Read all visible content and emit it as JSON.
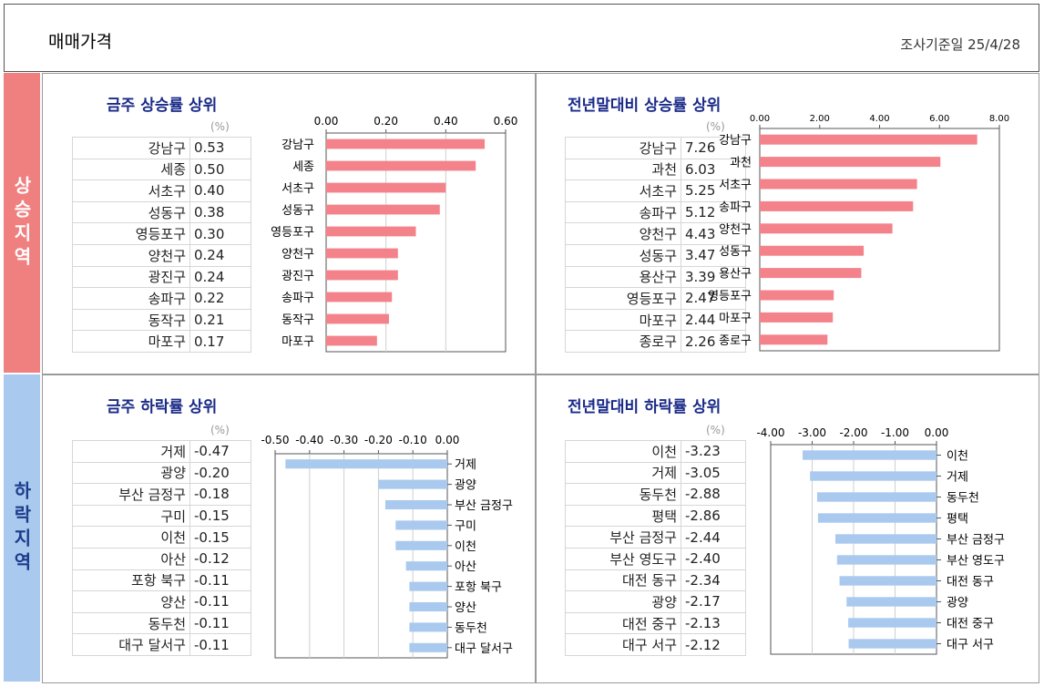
{
  "page": {
    "title": "매매가격",
    "survey_date": "조사기준일 25/4/28"
  },
  "regions": {
    "rising": "상승지역",
    "falling": "하락지역"
  },
  "panels": [
    {
      "title": "금주 상승률 상위",
      "unit": "(%)",
      "rows": [
        {
          "name": "강남구",
          "value": "0.53"
        },
        {
          "name": "세종",
          "value": "0.50"
        },
        {
          "name": "서초구",
          "value": "0.40"
        },
        {
          "name": "성동구",
          "value": "0.38"
        },
        {
          "name": "영등포구",
          "value": "0.30"
        },
        {
          "name": "양천구",
          "value": "0.24"
        },
        {
          "name": "광진구",
          "value": "0.24"
        },
        {
          "name": "송파구",
          "value": "0.22"
        },
        {
          "name": "동작구",
          "value": "0.21"
        },
        {
          "name": "마포구",
          "value": "0.17"
        }
      ]
    },
    {
      "title": "전년말대비 상승률 상위",
      "unit": "(%)",
      "rows": [
        {
          "name": "강남구",
          "value": "7.26"
        },
        {
          "name": "과천",
          "value": "6.03"
        },
        {
          "name": "서초구",
          "value": "5.25"
        },
        {
          "name": "송파구",
          "value": "5.12"
        },
        {
          "name": "양천구",
          "value": "4.43"
        },
        {
          "name": "성동구",
          "value": "3.47"
        },
        {
          "name": "용산구",
          "value": "3.39"
        },
        {
          "name": "영등포구",
          "value": "2.47"
        },
        {
          "name": "마포구",
          "value": "2.44"
        },
        {
          "name": "종로구",
          "value": "2.26"
        }
      ]
    },
    {
      "title": "금주 하락률 상위",
      "unit": "(%)",
      "rows": [
        {
          "name": "거제",
          "value": "-0.47"
        },
        {
          "name": "광양",
          "value": "-0.20"
        },
        {
          "name": "부산 금정구",
          "value": "-0.18"
        },
        {
          "name": "구미",
          "value": "-0.15"
        },
        {
          "name": "이천",
          "value": "-0.15"
        },
        {
          "name": "아산",
          "value": "-0.12"
        },
        {
          "name": "포항 북구",
          "value": "-0.11"
        },
        {
          "name": "양산",
          "value": "-0.11"
        },
        {
          "name": "동두천",
          "value": "-0.11"
        },
        {
          "name": "대구 달서구",
          "value": "-0.11"
        }
      ]
    },
    {
      "title": "전년말대비 하락률 상위",
      "unit": "(%)",
      "rows": [
        {
          "name": "이천",
          "value": "-3.23"
        },
        {
          "name": "거제",
          "value": "-3.05"
        },
        {
          "name": "동두천",
          "value": "-2.88"
        },
        {
          "name": "평택",
          "value": "-2.86"
        },
        {
          "name": "부산 금정구",
          "value": "-2.44"
        },
        {
          "name": "부산 영도구",
          "value": "-2.40"
        },
        {
          "name": "대전 동구",
          "value": "-2.34"
        },
        {
          "name": "광양",
          "value": "-2.17"
        },
        {
          "name": "대전 중구",
          "value": "-2.13"
        },
        {
          "name": "대구 서구",
          "value": "-2.12"
        }
      ]
    }
  ],
  "chart_data": [
    {
      "type": "bar",
      "orientation": "horizontal",
      "title": "금주 상승률 상위",
      "color": "#f4828a",
      "categories": [
        "강남구",
        "세종",
        "서초구",
        "성동구",
        "영등포구",
        "양천구",
        "광진구",
        "송파구",
        "동작구",
        "마포구"
      ],
      "values": [
        0.53,
        0.5,
        0.4,
        0.38,
        0.3,
        0.24,
        0.24,
        0.22,
        0.21,
        0.17
      ],
      "xlim": [
        0,
        0.6
      ],
      "ticks": [
        "0.00",
        "0.20",
        "0.40",
        "0.60"
      ],
      "grid": true
    },
    {
      "type": "bar",
      "orientation": "horizontal",
      "title": "전년말대비 상승률 상위",
      "color": "#f4828a",
      "categories": [
        "강남구",
        "과천",
        "서초구",
        "송파구",
        "양천구",
        "성동구",
        "용산구",
        "영등포구",
        "마포구",
        "종로구"
      ],
      "values": [
        7.26,
        6.03,
        5.25,
        5.12,
        4.43,
        3.47,
        3.39,
        2.47,
        2.44,
        2.26
      ],
      "xlim": [
        0,
        8.0
      ],
      "ticks": [
        "0.00",
        "2.00",
        "4.00",
        "6.00",
        "8.00"
      ],
      "grid": false
    },
    {
      "type": "bar",
      "orientation": "horizontal",
      "title": "금주 하락률 상위",
      "color": "#a9c9ee",
      "categories": [
        "거제",
        "광양",
        "부산 금정구",
        "구미",
        "이천",
        "아산",
        "포항 북구",
        "양산",
        "동두천",
        "대구 달서구"
      ],
      "values": [
        -0.47,
        -0.2,
        -0.18,
        -0.15,
        -0.15,
        -0.12,
        -0.11,
        -0.11,
        -0.11,
        -0.11
      ],
      "xlim": [
        -0.5,
        0.0
      ],
      "ticks": [
        "-0.50",
        "-0.40",
        "-0.30",
        "-0.20",
        "-0.10",
        "0.00"
      ],
      "grid": true
    },
    {
      "type": "bar",
      "orientation": "horizontal",
      "title": "전년말대비 하락률 상위",
      "color": "#a9c9ee",
      "categories": [
        "이천",
        "거제",
        "동두천",
        "평택",
        "부산 금정구",
        "부산 영도구",
        "대전 동구",
        "광양",
        "대전 중구",
        "대구 서구"
      ],
      "values": [
        -3.23,
        -3.05,
        -2.88,
        -2.86,
        -2.44,
        -2.4,
        -2.34,
        -2.17,
        -2.13,
        -2.12
      ],
      "xlim": [
        -4.0,
        0.0
      ],
      "ticks": [
        "-4.00",
        "-3.00",
        "-2.00",
        "-1.00",
        "0.00"
      ],
      "grid": true
    }
  ]
}
